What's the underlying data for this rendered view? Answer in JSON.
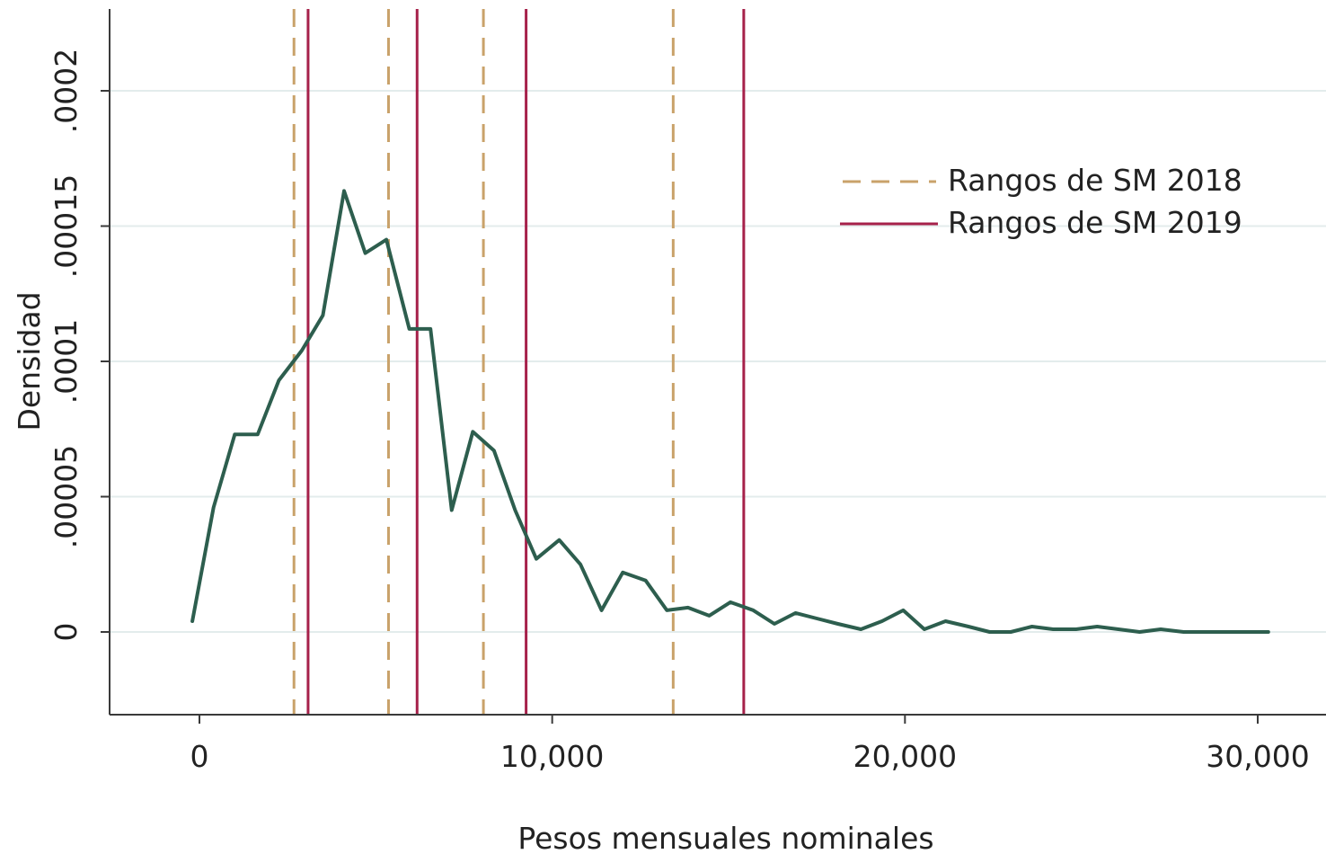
{
  "chart_data": {
    "type": "line",
    "title": "",
    "xlabel": "Pesos mensuales nominales",
    "ylabel": "Densidad",
    "xlim": [
      -2500,
      32000
    ],
    "ylim": [
      -3e-05,
      0.000232
    ],
    "x_ticks": [
      {
        "value": 0,
        "label": "0"
      },
      {
        "value": 10000,
        "label": "10,000"
      },
      {
        "value": 20000,
        "label": "20,000"
      },
      {
        "value": 30000,
        "label": "30,000"
      }
    ],
    "y_ticks": [
      {
        "value": 0,
        "label": "0"
      },
      {
        "value": 5e-05,
        "label": ".00005"
      },
      {
        "value": 0.0001,
        "label": ".0001"
      },
      {
        "value": 0.00015,
        "label": ".00015"
      },
      {
        "value": 0.0002,
        "label": ".0002"
      }
    ],
    "grid": "horizontal",
    "legend_position": "top-right",
    "series": [
      {
        "color": "#2d5e4e",
        "x": [
          -200,
          400,
          1000,
          1650,
          2250,
          2900,
          3500,
          4100,
          4700,
          5300,
          5950,
          6550,
          7150,
          7750,
          8350,
          8950,
          9550,
          10200,
          10800,
          11400,
          12000,
          12650,
          13250,
          13850,
          14450,
          15050,
          15700,
          16300,
          16900,
          17500,
          18100,
          18750,
          19350,
          19950,
          20550,
          21150,
          21800,
          22400,
          23000,
          23600,
          24200,
          24850,
          25450,
          26050,
          26650,
          27250,
          27900,
          28500,
          29100,
          29700,
          30300
        ],
        "y": [
          4e-06,
          4.6e-05,
          7.3e-05,
          7.3e-05,
          9.3e-05,
          0.000104,
          0.000117,
          0.000163,
          0.00014,
          0.000145,
          0.000112,
          0.000112,
          4.5e-05,
          7.4e-05,
          6.7e-05,
          4.5e-05,
          2.7e-05,
          3.4e-05,
          2.5e-05,
          8e-06,
          2.2e-05,
          1.9e-05,
          8e-06,
          9e-06,
          6e-06,
          1.1e-05,
          8e-06,
          3e-06,
          7e-06,
          5e-06,
          3e-06,
          1e-06,
          4e-06,
          8e-06,
          1e-06,
          4e-06,
          2e-06,
          0.0,
          0.0,
          2e-06,
          1e-06,
          1e-06,
          2e-06,
          1e-06,
          0.0,
          1e-06,
          0.0,
          0.0,
          0.0,
          0.0,
          0.0
        ]
      }
    ],
    "vertical_lines": [
      {
        "series": "Rangos de SM 2018",
        "color": "#c9a26a",
        "style": "dashed",
        "x": [
          2680,
          5360,
          8050,
          13430
        ]
      },
      {
        "series": "Rangos de SM 2019",
        "color": "#a6214a",
        "style": "solid",
        "x": [
          3080,
          6170,
          9260,
          15430
        ]
      }
    ],
    "legend": [
      {
        "label": "Rangos de SM 2018",
        "color": "#c9a26a",
        "style": "dashed"
      },
      {
        "label": "Rangos de SM 2019",
        "color": "#a6214a",
        "style": "solid"
      }
    ]
  }
}
